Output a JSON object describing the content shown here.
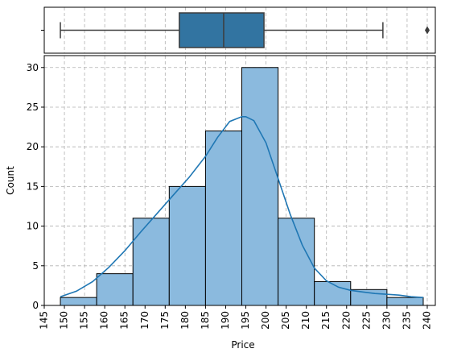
{
  "chart_data": [
    {
      "type": "boxplot",
      "min": 149,
      "q1": 178.5,
      "median": 189.5,
      "q3": 199.5,
      "max": 229,
      "outliers": [
        240
      ],
      "color": "#3274a1",
      "grid": true
    },
    {
      "type": "bar",
      "subtype": "histogram",
      "xlabel": "Price",
      "ylabel": "Count",
      "xlim": [
        145,
        242
      ],
      "ylim": [
        0,
        31.5
      ],
      "x_ticks": [
        145,
        150,
        155,
        160,
        165,
        170,
        175,
        180,
        185,
        190,
        195,
        200,
        205,
        210,
        215,
        220,
        225,
        230,
        235,
        240
      ],
      "y_ticks": [
        0,
        5,
        10,
        15,
        20,
        25,
        30
      ],
      "bins": [
        {
          "x0": 149,
          "x1": 158,
          "count": 1
        },
        {
          "x0": 158,
          "x1": 167,
          "count": 4
        },
        {
          "x0": 167,
          "x1": 176,
          "count": 11
        },
        {
          "x0": 176,
          "x1": 185,
          "count": 15
        },
        {
          "x0": 185,
          "x1": 194,
          "count": 22
        },
        {
          "x0": 194,
          "x1": 203,
          "count": 30
        },
        {
          "x0": 203,
          "x1": 212,
          "count": 11
        },
        {
          "x0": 212,
          "x1": 221,
          "count": 3
        },
        {
          "x0": 221,
          "x1": 230,
          "count": 2
        },
        {
          "x0": 230,
          "x1": 239,
          "count": 1
        }
      ],
      "kde": {
        "x": [
          149,
          153,
          157,
          161,
          165,
          169,
          173,
          177,
          181,
          185,
          188,
          191,
          194,
          195,
          197,
          200,
          203,
          206,
          209,
          212,
          215,
          218,
          221,
          224,
          227,
          230,
          233,
          236,
          239
        ],
        "y": [
          1.1,
          1.8,
          3.0,
          4.8,
          6.9,
          9.3,
          11.6,
          13.9,
          16.2,
          18.8,
          21.2,
          23.2,
          23.8,
          23.8,
          23.3,
          20.5,
          16.0,
          11.5,
          7.6,
          4.7,
          3.1,
          2.3,
          1.9,
          1.7,
          1.5,
          1.4,
          1.3,
          1.1,
          1.0
        ]
      },
      "bar_color": "#8bbade",
      "line_color": "#1f77b4",
      "grid": true
    }
  ]
}
